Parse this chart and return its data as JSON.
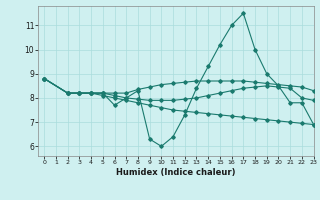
{
  "title": "",
  "xlabel": "Humidex (Indice chaleur)",
  "ylabel": "",
  "bg_color": "#cff0f0",
  "grid_color": "#aadddd",
  "line_color": "#1a7a6e",
  "xlim": [
    -0.5,
    23
  ],
  "ylim": [
    5.6,
    11.8
  ],
  "xticks": [
    0,
    1,
    2,
    3,
    4,
    5,
    6,
    7,
    8,
    9,
    10,
    11,
    12,
    13,
    14,
    15,
    16,
    17,
    18,
    19,
    20,
    21,
    22,
    23
  ],
  "yticks": [
    6,
    7,
    8,
    9,
    10,
    11
  ],
  "series": [
    {
      "x": [
        0,
        2,
        3,
        4,
        5,
        6,
        7,
        8,
        9,
        10,
        11,
        12,
        13,
        14,
        15,
        16,
        17,
        18,
        19,
        20,
        21,
        22,
        23
      ],
      "y": [
        8.8,
        8.2,
        8.2,
        8.2,
        8.2,
        7.7,
        8.0,
        8.3,
        6.3,
        6.0,
        6.4,
        7.3,
        8.4,
        9.3,
        10.2,
        11.0,
        11.5,
        10.0,
        9.0,
        8.5,
        7.8,
        7.8,
        6.9
      ]
    },
    {
      "x": [
        0,
        2,
        3,
        4,
        5,
        6,
        7,
        8,
        9,
        10,
        11,
        12,
        13,
        14,
        15,
        16,
        17,
        18,
        19,
        20,
        21,
        22,
        23
      ],
      "y": [
        8.8,
        8.2,
        8.2,
        8.2,
        8.2,
        8.2,
        8.2,
        8.35,
        8.45,
        8.55,
        8.6,
        8.65,
        8.7,
        8.7,
        8.7,
        8.7,
        8.7,
        8.65,
        8.6,
        8.55,
        8.5,
        8.45,
        8.3
      ]
    },
    {
      "x": [
        0,
        2,
        3,
        4,
        5,
        6,
        7,
        8,
        9,
        10,
        11,
        12,
        13,
        14,
        15,
        16,
        17,
        18,
        19,
        20,
        21,
        22,
        23
      ],
      "y": [
        8.8,
        8.2,
        8.2,
        8.2,
        8.1,
        8.0,
        7.9,
        7.8,
        7.7,
        7.6,
        7.5,
        7.45,
        7.4,
        7.35,
        7.3,
        7.25,
        7.2,
        7.15,
        7.1,
        7.05,
        7.0,
        6.95,
        6.9
      ]
    },
    {
      "x": [
        0,
        2,
        3,
        4,
        5,
        6,
        7,
        8,
        9,
        10,
        11,
        12,
        13,
        14,
        15,
        16,
        17,
        18,
        19,
        20,
        21,
        22,
        23
      ],
      "y": [
        8.8,
        8.2,
        8.2,
        8.2,
        8.2,
        8.1,
        8.0,
        7.95,
        7.9,
        7.9,
        7.9,
        7.95,
        8.0,
        8.1,
        8.2,
        8.3,
        8.4,
        8.45,
        8.5,
        8.45,
        8.4,
        8.0,
        7.9
      ]
    }
  ]
}
